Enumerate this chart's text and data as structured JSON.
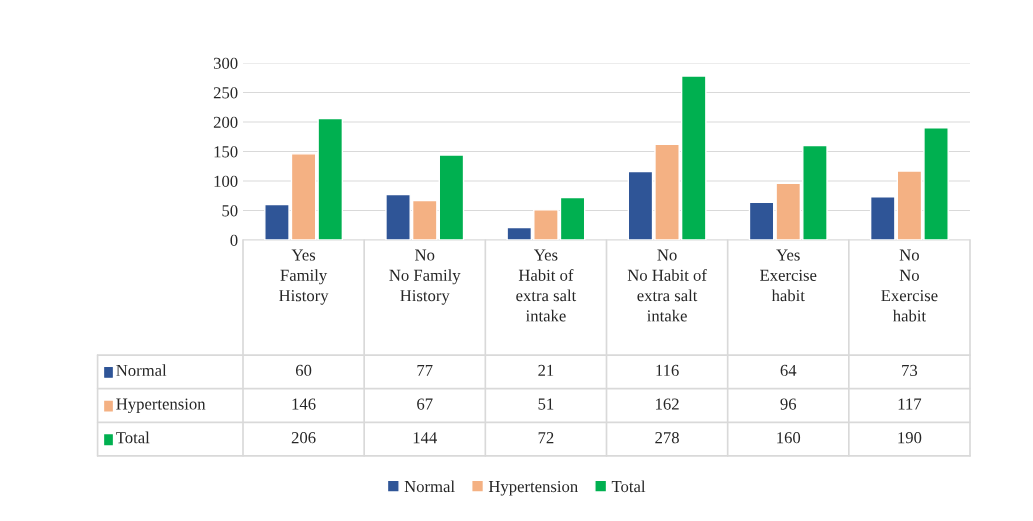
{
  "chart_data": {
    "type": "bar",
    "categories": [
      "Yes\nFamily\nHistory",
      "No\nNo Family\nHistory",
      "Yes\nHabit of\nextra salt\nintake",
      "No\nNo Habit of\nextra salt\nintake",
      "Yes\nExercise\nhabit",
      "No\nNo\nExercise\nhabit"
    ],
    "series": [
      {
        "name": "Normal",
        "color": "#2f5597",
        "values": [
          60,
          77,
          21,
          116,
          64,
          73
        ]
      },
      {
        "name": "Hypertension",
        "color": "#f4b183",
        "values": [
          146,
          67,
          51,
          162,
          96,
          117
        ]
      },
      {
        "name": "Total",
        "color": "#00b050",
        "values": [
          206,
          144,
          72,
          278,
          160,
          190
        ]
      }
    ],
    "ylim": [
      0,
      300
    ],
    "yticks": [
      0,
      50,
      100,
      150,
      200,
      250,
      300
    ],
    "grid": "y",
    "legend": "bottom",
    "data_labels": true
  }
}
